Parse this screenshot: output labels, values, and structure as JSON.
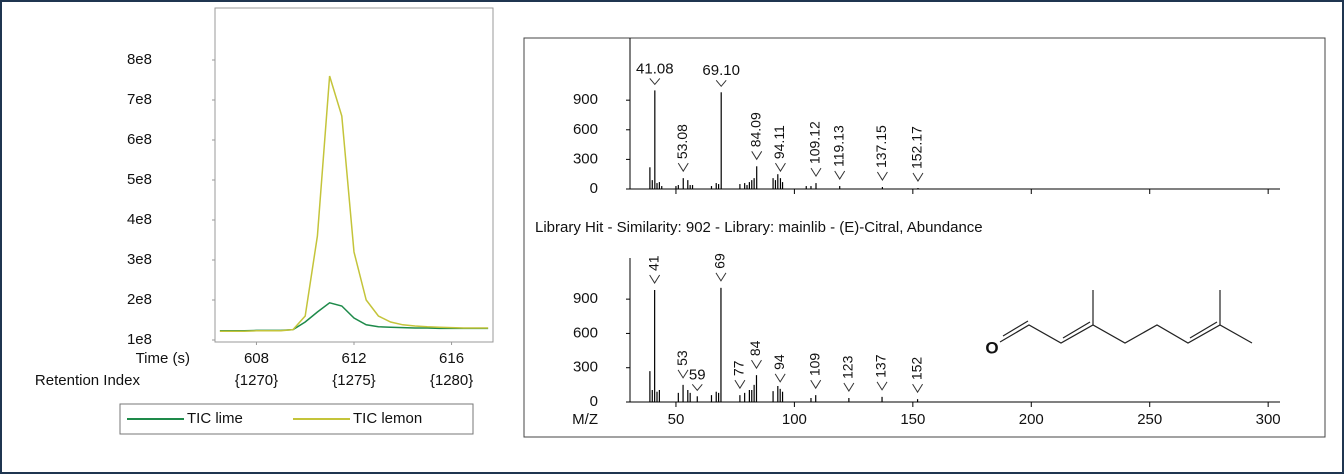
{
  "chart_data": [
    {
      "type": "line",
      "xlabel": "Time (s)",
      "x2label": "Retention Index",
      "x": [
        606.5,
        607,
        607.5,
        608,
        608.5,
        609,
        609.5,
        610,
        610.5,
        611,
        611.5,
        612,
        612.5,
        613,
        613.5,
        614,
        614.5,
        615,
        615.5,
        616,
        616.5,
        617,
        617.5
      ],
      "series": [
        {
          "name": "TIC lime",
          "color": "#1e8a4a",
          "values": [
            123000000,
            123000000,
            123000000,
            124000000,
            124000000,
            124000000,
            126000000,
            145000000,
            170000000,
            193000000,
            185000000,
            155000000,
            138000000,
            133000000,
            132000000,
            131000000,
            130000000,
            130000000,
            129000000,
            129000000,
            129000000,
            129000000,
            129000000
          ]
        },
        {
          "name": "TIC lemon",
          "color": "#c4c43a",
          "values": [
            122000000,
            122000000,
            122000000,
            123000000,
            123000000,
            123000000,
            126000000,
            160000000,
            360000000,
            760000000,
            660000000,
            320000000,
            200000000,
            160000000,
            145000000,
            138000000,
            135000000,
            133000000,
            132000000,
            131000000,
            130000000,
            130000000,
            130000000
          ]
        }
      ],
      "xlim": [
        606.3,
        617.7
      ],
      "xticks": [
        608,
        612,
        616
      ],
      "x2ticks": [
        {
          "value": 608,
          "label": "{1270}"
        },
        {
          "value": 612,
          "label": "{1275}"
        },
        {
          "value": 616,
          "label": "{1280}"
        }
      ],
      "ylim": [
        95000000,
        930000000
      ],
      "yticks": [
        {
          "value": 100000000,
          "label": "1e8"
        },
        {
          "value": 200000000,
          "label": "2e8"
        },
        {
          "value": 300000000,
          "label": "3e8"
        },
        {
          "value": 400000000,
          "label": "4e8"
        },
        {
          "value": 500000000,
          "label": "5e8"
        },
        {
          "value": 600000000,
          "label": "6e8"
        },
        {
          "value": 700000000,
          "label": "7e8"
        },
        {
          "value": 800000000,
          "label": "8e8"
        }
      ],
      "legend": "bottom"
    },
    {
      "type": "stem",
      "xlim": [
        30.6,
        305
      ],
      "ylim": [
        0,
        1530
      ],
      "yticks": [
        0,
        300,
        600,
        900
      ],
      "color": "#000000",
      "labeled_peaks": {
        "x": [
          41.08,
          53.08,
          69.1,
          84.09,
          94.11,
          109.12,
          119.13,
          137.15,
          152.17
        ],
        "values": [
          999,
          110,
          980,
          230,
          110,
          60,
          30,
          20,
          10
        ],
        "labels": [
          "41.08",
          "53.08",
          "69.10",
          "84.09",
          "94.11",
          "109.12",
          "119.13",
          "137.15",
          "152.17"
        ]
      },
      "minor_peaks": {
        "x": [
          39,
          40,
          42,
          43,
          44,
          50,
          51,
          55,
          56,
          57,
          65,
          67,
          68,
          77,
          79,
          80,
          81,
          82,
          83,
          91,
          92,
          93,
          95,
          105,
          107
        ],
        "values": [
          220,
          90,
          60,
          70,
          30,
          30,
          40,
          90,
          40,
          40,
          30,
          60,
          50,
          50,
          60,
          40,
          70,
          90,
          110,
          110,
          90,
          150,
          70,
          30,
          30
        ]
      }
    },
    {
      "type": "stem",
      "title": "Library Hit - Similarity: 902 - Library: mainlib - (E)-Citral, Abundance",
      "xlabel": "M/Z",
      "xlim": [
        30.6,
        305
      ],
      "xticks": [
        50,
        100,
        150,
        200,
        250,
        300
      ],
      "ylim": [
        0,
        1260
      ],
      "yticks": [
        0,
        300,
        600,
        900
      ],
      "color": "#000000",
      "labeled_peaks": {
        "x": [
          41,
          53,
          59,
          69,
          77,
          84,
          94,
          109,
          123,
          137,
          152
        ],
        "values": [
          980,
          150,
          50,
          999,
          60,
          235,
          115,
          60,
          35,
          45,
          25
        ],
        "labels": [
          "41",
          "53",
          "59",
          "69",
          "77",
          "84",
          "94",
          "109",
          "123",
          "137",
          "152"
        ]
      },
      "minor_peaks": {
        "x": [
          39,
          40,
          42,
          43,
          51,
          55,
          56,
          65,
          67,
          68,
          79,
          81,
          82,
          83,
          91,
          93,
          95,
          107
        ],
        "values": [
          270,
          105,
          90,
          105,
          80,
          105,
          80,
          60,
          90,
          80,
          80,
          105,
          105,
          150,
          95,
          140,
          90,
          35
        ]
      },
      "structure_label": "O"
    }
  ]
}
